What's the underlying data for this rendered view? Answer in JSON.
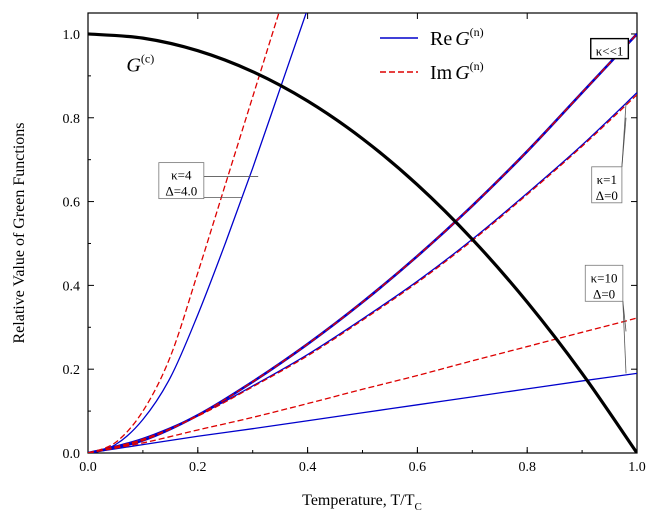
{
  "chart_data": {
    "type": "line",
    "xlabel": "Temperature, T/T",
    "xlabel_sub": "C",
    "ylabel": "Relative Value of Green Functions",
    "xlim": [
      0,
      1
    ],
    "ylim": [
      0,
      1.05
    ],
    "xticks": [
      "0.0",
      "0.2",
      "0.4",
      "0.6",
      "0.8",
      "1.0"
    ],
    "xtick_values": [
      0,
      0.2,
      0.4,
      0.6,
      0.8,
      1.0
    ],
    "yticks": [
      "0.0",
      "0.2",
      "0.4",
      "0.6",
      "0.8",
      "1.0"
    ],
    "ytick_values": [
      0,
      0.2,
      0.4,
      0.6,
      0.8,
      1.0
    ],
    "grid": false,
    "legend_position": "top-center",
    "legend": [
      {
        "prefix": "Re",
        "symbol": "G",
        "sup": "(n)",
        "style": "solid",
        "color": "#0000cc"
      },
      {
        "prefix": "Im",
        "symbol": "G",
        "sup": "(n)",
        "style": "dashed",
        "color": "#dd0000"
      }
    ],
    "colors": {
      "re": "#0000cc",
      "im": "#dd0000",
      "gc": "#000000"
    },
    "series": [
      {
        "name": "G(c)",
        "kind": "gc",
        "x": [
          0,
          0.1,
          0.2,
          0.3,
          0.4,
          0.5,
          0.6,
          0.7,
          0.8,
          0.9,
          1.0
        ],
        "y": [
          1.0,
          0.99,
          0.96,
          0.91,
          0.84,
          0.75,
          0.64,
          0.51,
          0.36,
          0.19,
          0.0
        ]
      },
      {
        "name": "Re G(n), κ<<1",
        "kind": "re",
        "width": 2.6,
        "x": [
          0,
          0.1,
          0.2,
          0.3,
          0.4,
          0.5,
          0.6,
          0.7,
          0.8,
          0.9,
          1.0
        ],
        "y": [
          0,
          0.03,
          0.09,
          0.17,
          0.26,
          0.36,
          0.47,
          0.59,
          0.72,
          0.86,
          1.0
        ]
      },
      {
        "name": "Im G(n), κ<<1",
        "kind": "im",
        "width": 1.4,
        "x": [
          0,
          0.1,
          0.2,
          0.3,
          0.4,
          0.5,
          0.6,
          0.7,
          0.8,
          0.9,
          1.0
        ],
        "y": [
          0,
          0.03,
          0.09,
          0.17,
          0.26,
          0.36,
          0.47,
          0.59,
          0.72,
          0.86,
          1.0
        ]
      },
      {
        "name": "Re G(n), κ=1",
        "kind": "re",
        "width": 1.3,
        "x": [
          0,
          0.1,
          0.2,
          0.3,
          0.4,
          0.5,
          0.6,
          0.7,
          0.8,
          0.9,
          1.0
        ],
        "y": [
          0,
          0.035,
          0.09,
          0.16,
          0.235,
          0.32,
          0.41,
          0.51,
          0.62,
          0.735,
          0.86
        ]
      },
      {
        "name": "Im G(n), κ=1",
        "kind": "im",
        "width": 1.3,
        "x": [
          0,
          0.1,
          0.2,
          0.3,
          0.4,
          0.5,
          0.6,
          0.7,
          0.8,
          0.9,
          1.0
        ],
        "y": [
          0,
          0.033,
          0.088,
          0.158,
          0.232,
          0.317,
          0.407,
          0.507,
          0.617,
          0.732,
          0.855
        ]
      },
      {
        "name": "Re G(n), κ=10",
        "kind": "re",
        "width": 1.3,
        "x": [
          0,
          0.1,
          0.2,
          0.3,
          0.4,
          0.5,
          0.6,
          0.7,
          0.8,
          0.9,
          1.0
        ],
        "y": [
          0,
          0.02,
          0.04,
          0.058,
          0.077,
          0.096,
          0.115,
          0.134,
          0.153,
          0.172,
          0.19
        ]
      },
      {
        "name": "Im G(n), κ=10",
        "kind": "im",
        "width": 1.3,
        "x": [
          0,
          0.1,
          0.2,
          0.3,
          0.4,
          0.5,
          0.6,
          0.7,
          0.8,
          0.9,
          1.0
        ],
        "y": [
          0,
          0.024,
          0.055,
          0.085,
          0.118,
          0.152,
          0.185,
          0.22,
          0.254,
          0.288,
          0.322
        ]
      },
      {
        "name": "Re G(n), κ=4, Δ=4.0",
        "kind": "re",
        "width": 1.3,
        "x": [
          0,
          0.05,
          0.1,
          0.15,
          0.2,
          0.25,
          0.3,
          0.35,
          0.4
        ],
        "y": [
          0,
          0.02,
          0.08,
          0.18,
          0.33,
          0.5,
          0.68,
          0.87,
          1.06
        ]
      },
      {
        "name": "Im G(n), κ=4, Δ=4.0",
        "kind": "im",
        "width": 1.3,
        "x": [
          0,
          0.05,
          0.1,
          0.15,
          0.2,
          0.25,
          0.3,
          0.35
        ],
        "y": [
          0,
          0.025,
          0.1,
          0.23,
          0.43,
          0.64,
          0.85,
          1.06
        ]
      }
    ],
    "annotations": [
      {
        "symbol": "G",
        "sup": "(c)",
        "x": 0.07,
        "y": 0.91
      },
      {
        "lines": [
          "κ=4",
          "Δ=4.0"
        ],
        "boxed": false,
        "x": 0.17,
        "y": 0.65,
        "ptr": [
          [
            0.31,
            0.66
          ],
          [
            0.28,
            0.61
          ]
        ]
      },
      {
        "lines": [
          "κ<<1"
        ],
        "boxed": true,
        "x": 0.95,
        "y": 0.965,
        "ptr": [
          [
            0.98,
            0.97
          ]
        ]
      },
      {
        "lines": [
          "κ=1",
          "Δ=0"
        ],
        "boxed": false,
        "x": 0.945,
        "y": 0.64,
        "ptr": [
          [
            0.98,
            0.835
          ],
          [
            0.98,
            0.8
          ]
        ]
      },
      {
        "lines": [
          "κ=10",
          "Δ=0"
        ],
        "boxed": false,
        "x": 0.94,
        "y": 0.405,
        "ptr": [
          [
            0.98,
            0.19
          ],
          [
            0.98,
            0.29
          ]
        ]
      }
    ]
  }
}
